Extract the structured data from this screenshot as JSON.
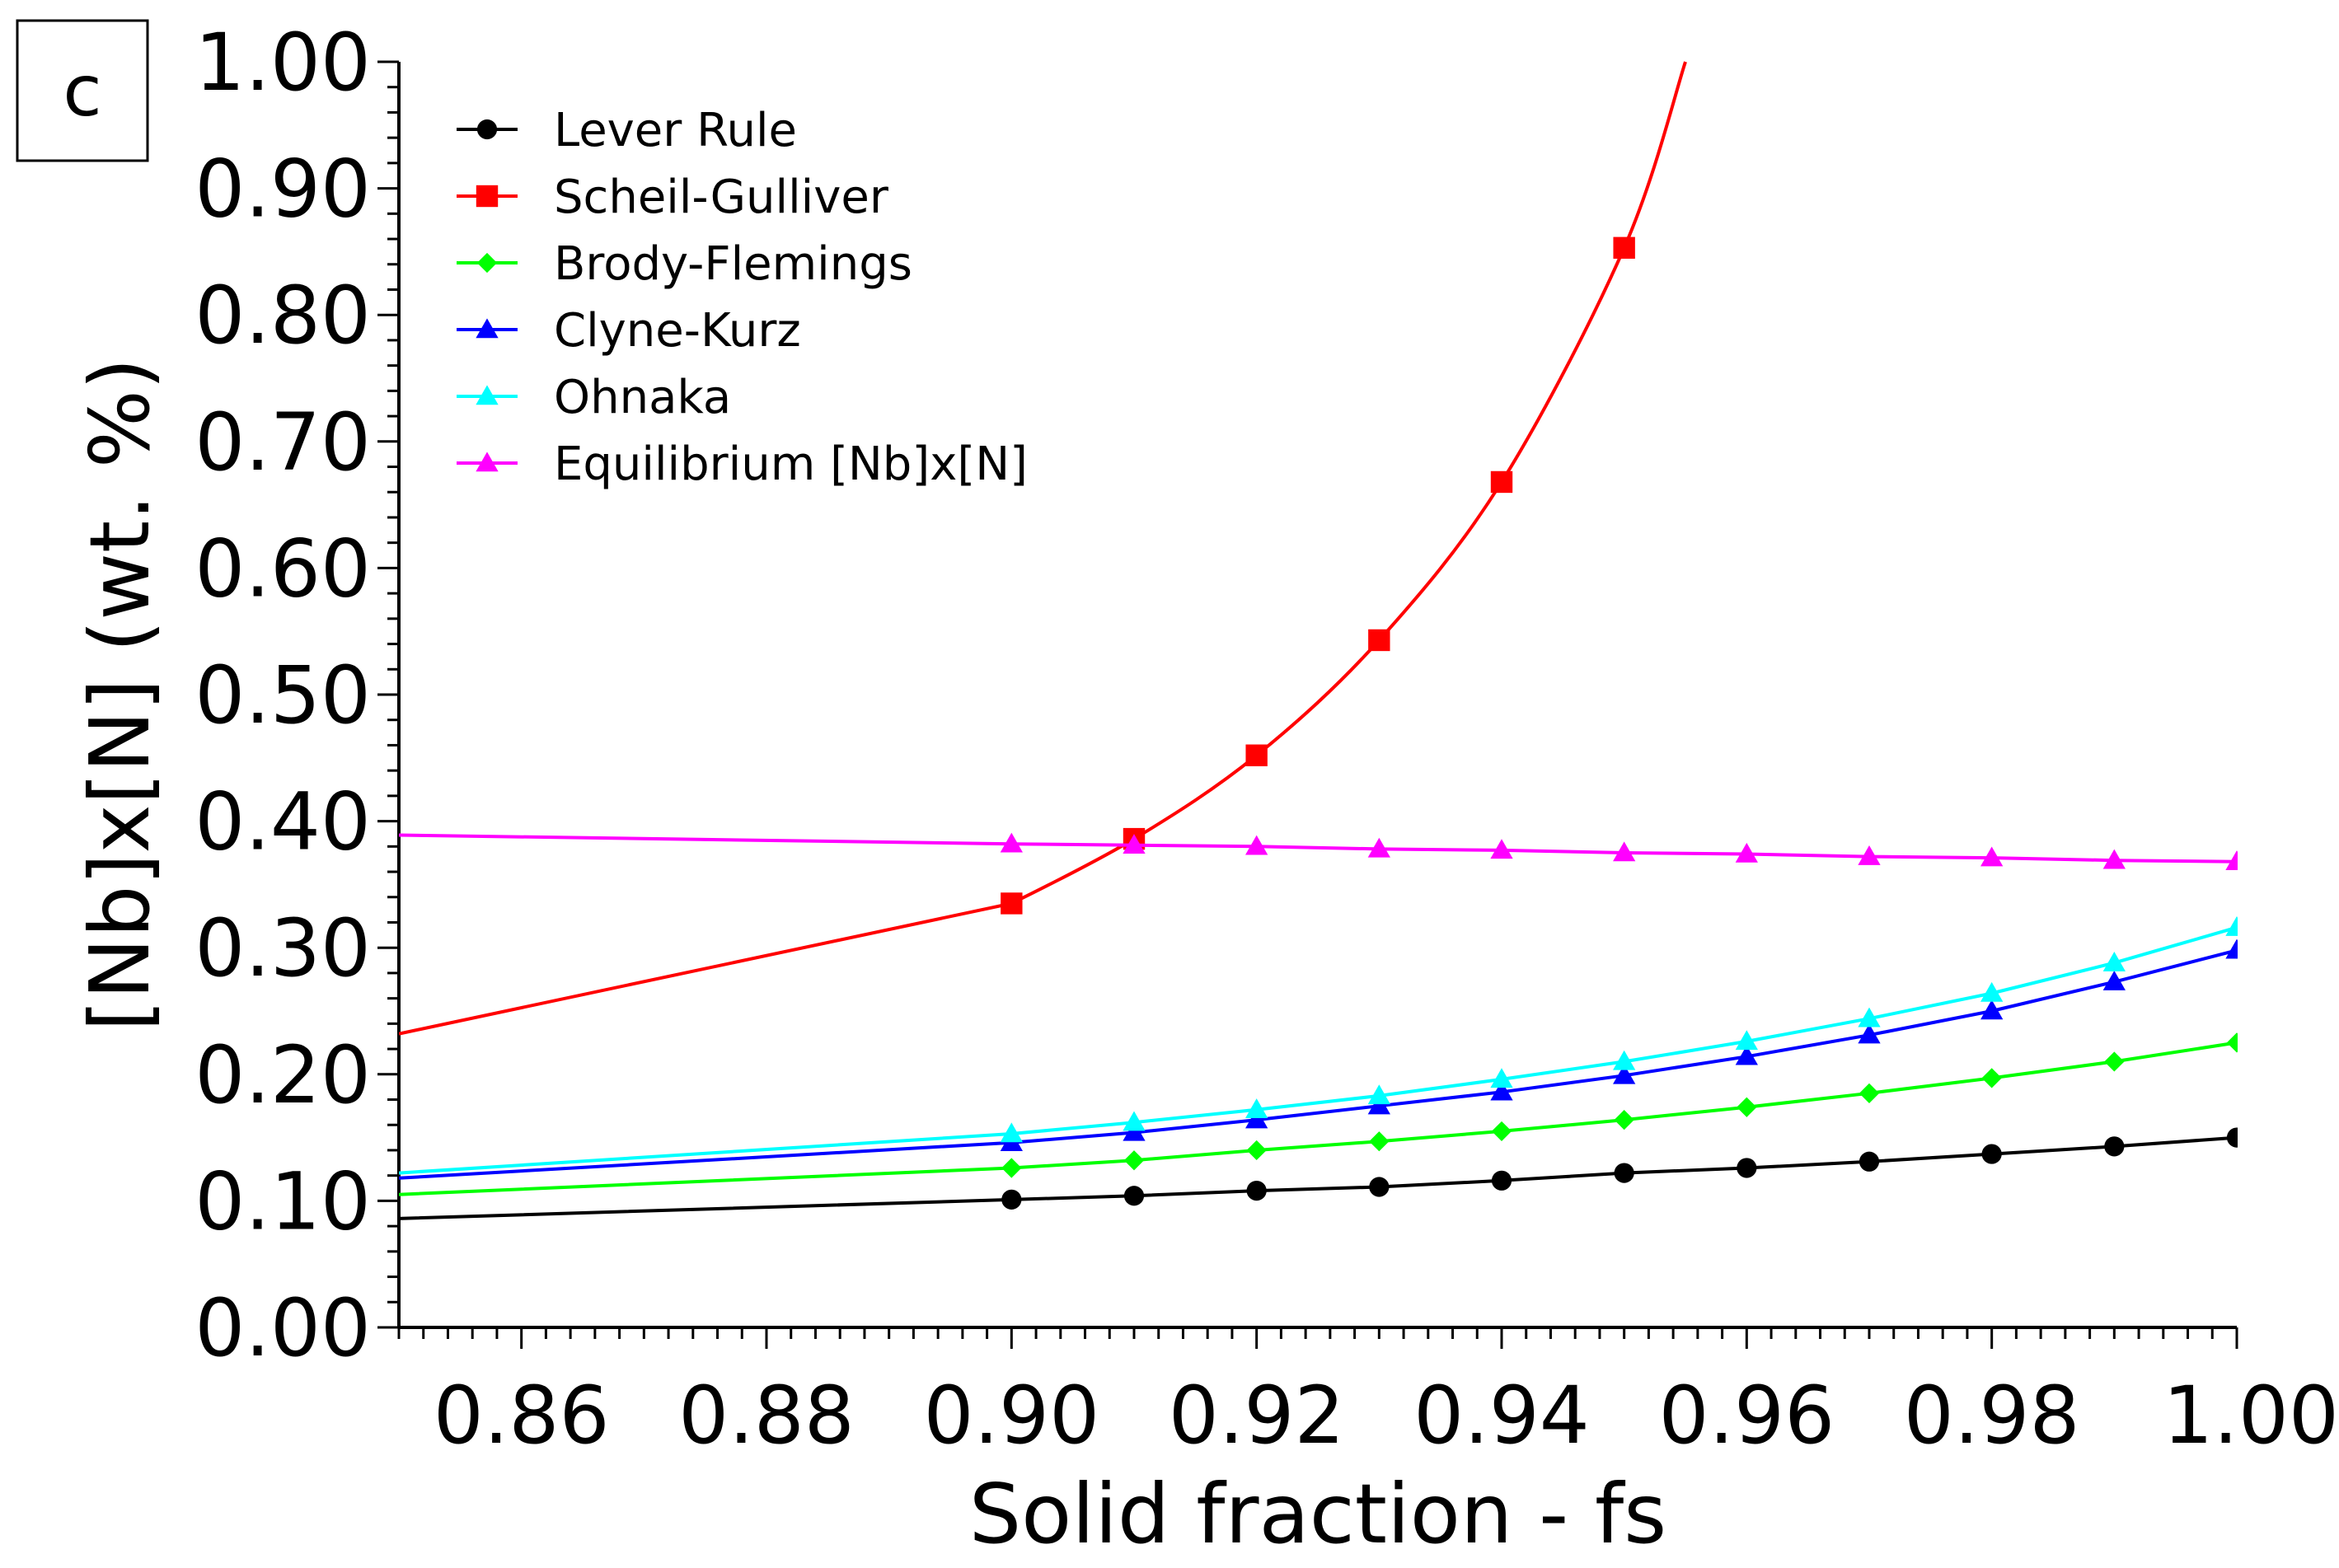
{
  "chart_data": {
    "type": "line",
    "panel_label": "c",
    "xlabel": "Solid fraction - fs",
    "ylabel": "[Nb]x[N] (wt. %)",
    "xlim": [
      0.85,
      1.0
    ],
    "ylim": [
      0.0,
      1.0
    ],
    "x_ticks": [
      "0.86",
      "0.88",
      "0.90",
      "0.92",
      "0.94",
      "0.96",
      "0.98",
      "1.00"
    ],
    "y_ticks": [
      "0.00",
      "0.10",
      "0.20",
      "0.30",
      "0.40",
      "0.50",
      "0.60",
      "0.70",
      "0.80",
      "0.90",
      "1.00"
    ],
    "grid": false,
    "legend_position": "top-left",
    "series": [
      {
        "name": "Lever Rule",
        "color": "#000000",
        "marker": "circle",
        "x": [
          0.85,
          0.9,
          0.91,
          0.92,
          0.93,
          0.94,
          0.95,
          0.96,
          0.97,
          0.98,
          0.99,
          1.0
        ],
        "y": [
          0.086,
          0.101,
          0.104,
          0.108,
          0.111,
          0.116,
          0.122,
          0.126,
          0.131,
          0.137,
          0.143,
          0.15
        ]
      },
      {
        "name": "Scheil-Gulliver",
        "color": "#ff0000",
        "marker": "square",
        "x": [
          0.85,
          0.9,
          0.91,
          0.92,
          0.93,
          0.94,
          0.95,
          0.955
        ],
        "y": [
          0.232,
          0.335,
          0.386,
          0.452,
          0.543,
          0.668,
          0.853,
          1.0
        ]
      },
      {
        "name": "Brody-Flemings",
        "color": "#00ff00",
        "marker": "diamond",
        "x": [
          0.85,
          0.9,
          0.91,
          0.92,
          0.93,
          0.94,
          0.95,
          0.96,
          0.97,
          0.98,
          0.99,
          1.0
        ],
        "y": [
          0.105,
          0.126,
          0.132,
          0.14,
          0.147,
          0.155,
          0.164,
          0.174,
          0.185,
          0.197,
          0.21,
          0.225
        ]
      },
      {
        "name": "Clyne-Kurz",
        "color": "#0000ff",
        "marker": "triangle",
        "x": [
          0.85,
          0.9,
          0.91,
          0.92,
          0.93,
          0.94,
          0.95,
          0.96,
          0.97,
          0.98,
          0.99,
          1.0
        ],
        "y": [
          0.118,
          0.146,
          0.154,
          0.164,
          0.175,
          0.186,
          0.199,
          0.214,
          0.231,
          0.25,
          0.273,
          0.298
        ]
      },
      {
        "name": "Ohnaka",
        "color": "#00ffff",
        "marker": "triangle",
        "x": [
          0.85,
          0.9,
          0.91,
          0.92,
          0.93,
          0.94,
          0.95,
          0.96,
          0.97,
          0.98,
          0.99,
          1.0
        ],
        "y": [
          0.122,
          0.153,
          0.162,
          0.172,
          0.183,
          0.196,
          0.21,
          0.226,
          0.244,
          0.264,
          0.288,
          0.316
        ]
      },
      {
        "name": "Equilibrium [Nb]x[N]",
        "color": "#ff00ff",
        "marker": "triangle",
        "x": [
          0.85,
          0.9,
          0.91,
          0.92,
          0.93,
          0.94,
          0.95,
          0.96,
          0.97,
          0.98,
          0.99,
          1.0
        ],
        "y": [
          0.389,
          0.382,
          0.381,
          0.38,
          0.378,
          0.377,
          0.375,
          0.374,
          0.372,
          0.371,
          0.369,
          0.368
        ]
      }
    ]
  }
}
